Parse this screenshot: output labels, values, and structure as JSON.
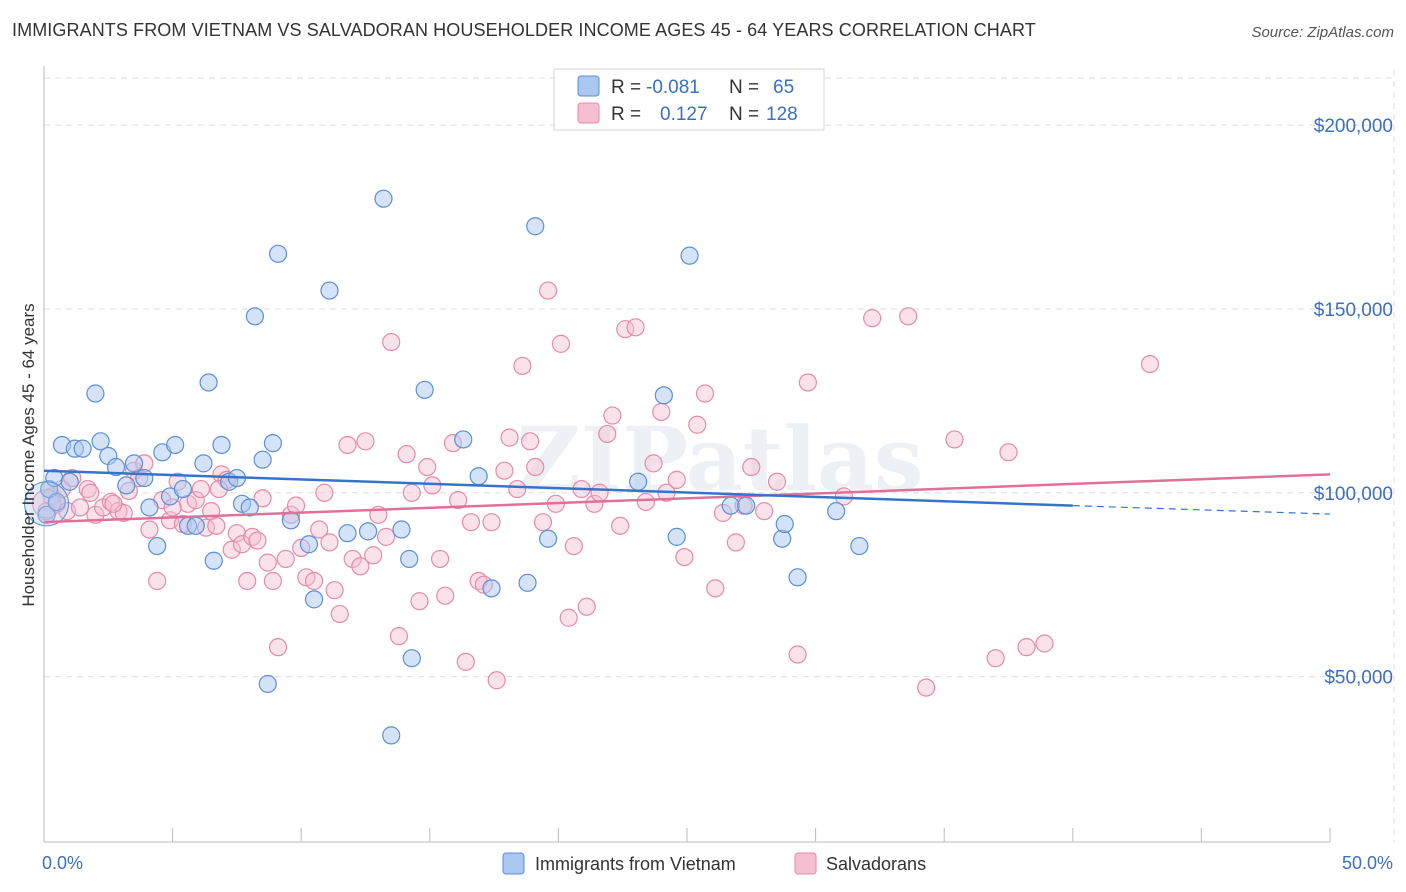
{
  "title": "IMMIGRANTS FROM VIETNAM VS SALVADORAN HOUSEHOLDER INCOME AGES 45 - 64 YEARS CORRELATION CHART",
  "source": "Source: ZipAtlas.com",
  "watermark": "ZIPatlas",
  "colors": {
    "blue_fill": "#a9c7ef",
    "blue_stroke": "#5b8fd6",
    "blue_line": "#3573cc",
    "pink_fill": "#f5bfd1",
    "pink_stroke": "#e68aaa",
    "pink_line": "#e0709a",
    "tick_text": "#3a6fc4",
    "grid": "#dddddd"
  },
  "legend": {
    "rows": [
      {
        "r_label": "R =",
        "r_value": "-0.081",
        "n_label": "N =",
        "n_value": "65"
      },
      {
        "r_label": "R =",
        "r_value": "0.127",
        "n_label": "N =",
        "n_value": "128"
      }
    ]
  },
  "bottom_legend": [
    "Immigrants from Vietnam",
    "Salvadorans"
  ],
  "chart_data": {
    "type": "scatter",
    "title": "IMMIGRANTS FROM VIETNAM VS SALVADORAN HOUSEHOLDER INCOME AGES 45 - 64 YEARS CORRELATION CHART",
    "xlabel": "",
    "ylabel": "Householder Income Ages 45 - 64 years",
    "xlim": [
      0,
      50
    ],
    "ylim": [
      5000,
      215000
    ],
    "x_tick_labels": [
      "0.0%",
      "50.0%"
    ],
    "y_ticks": [
      50000,
      100000,
      150000,
      200000
    ],
    "y_tick_labels": [
      "$50,000",
      "$100,000",
      "$150,000",
      "$200,000"
    ],
    "grid": true,
    "legend_position": "top-center",
    "series": [
      {
        "name": "Immigrants from Vietnam",
        "color": "#5b8fd6",
        "r": -0.081,
        "n": 65,
        "trend": {
          "x": [
            0,
            40
          ],
          "y": [
            106000,
            96500
          ],
          "dashed_to": [
            50,
            94200
          ]
        },
        "points": [
          [
            0.1,
            94000
          ],
          [
            0.2,
            101000
          ],
          [
            0.4,
            104000
          ],
          [
            0.5,
            97500
          ],
          [
            0.7,
            113000
          ],
          [
            1.0,
            103000
          ],
          [
            1.2,
            112000
          ],
          [
            1.5,
            112000
          ],
          [
            2.0,
            127000
          ],
          [
            2.2,
            114000
          ],
          [
            2.5,
            110000
          ],
          [
            2.8,
            107000
          ],
          [
            3.2,
            102000
          ],
          [
            3.5,
            108000
          ],
          [
            3.9,
            104000
          ],
          [
            4.1,
            96000
          ],
          [
            4.4,
            85500
          ],
          [
            4.6,
            111000
          ],
          [
            4.9,
            99000
          ],
          [
            5.1,
            113000
          ],
          [
            5.4,
            101000
          ],
          [
            5.6,
            91000
          ],
          [
            5.9,
            91000
          ],
          [
            6.2,
            108000
          ],
          [
            6.4,
            130000
          ],
          [
            6.6,
            81500
          ],
          [
            6.9,
            113000
          ],
          [
            7.2,
            103000
          ],
          [
            7.5,
            104000
          ],
          [
            7.7,
            97000
          ],
          [
            8.0,
            96000
          ],
          [
            8.2,
            148000
          ],
          [
            8.5,
            109000
          ],
          [
            8.7,
            48000
          ],
          [
            8.9,
            113500
          ],
          [
            9.1,
            165000
          ],
          [
            9.6,
            92500
          ],
          [
            10.3,
            86000
          ],
          [
            10.5,
            71000
          ],
          [
            11.1,
            155000
          ],
          [
            11.8,
            89000
          ],
          [
            12.6,
            89500
          ],
          [
            13.2,
            180000
          ],
          [
            13.5,
            34000
          ],
          [
            13.9,
            90000
          ],
          [
            14.2,
            82000
          ],
          [
            14.3,
            55000
          ],
          [
            14.8,
            128000
          ],
          [
            16.3,
            114500
          ],
          [
            16.9,
            104500
          ],
          [
            17.4,
            74000
          ],
          [
            18.8,
            75500
          ],
          [
            19.1,
            172500
          ],
          [
            19.6,
            87500
          ],
          [
            23.1,
            103000
          ],
          [
            24.1,
            126500
          ],
          [
            24.6,
            88000
          ],
          [
            25.1,
            164500
          ],
          [
            26.7,
            96500
          ],
          [
            27.3,
            96500
          ],
          [
            28.7,
            87500
          ],
          [
            28.8,
            91500
          ],
          [
            29.3,
            77000
          ],
          [
            30.8,
            95000
          ],
          [
            31.7,
            85500
          ]
        ]
      },
      {
        "name": "Salvadorans",
        "color": "#e68aaa",
        "r": 0.127,
        "n": 128,
        "trend": {
          "x": [
            0,
            50
          ],
          "y": [
            92000,
            105000
          ]
        },
        "points": [
          [
            0.1,
            95000
          ],
          [
            0.3,
            99000
          ],
          [
            0.5,
            97000
          ],
          [
            0.7,
            101000
          ],
          [
            0.9,
            95000
          ],
          [
            1.1,
            104000
          ],
          [
            1.4,
            96000
          ],
          [
            1.7,
            101000
          ],
          [
            2.0,
            94000
          ],
          [
            2.3,
            96000
          ],
          [
            2.6,
            97500
          ],
          [
            2.9,
            95000
          ],
          [
            3.1,
            94500
          ],
          [
            3.3,
            100500
          ],
          [
            3.5,
            106000
          ],
          [
            3.7,
            104000
          ],
          [
            3.9,
            108000
          ],
          [
            4.1,
            90000
          ],
          [
            4.4,
            76000
          ],
          [
            4.6,
            98000
          ],
          [
            4.9,
            92500
          ],
          [
            5.2,
            103000
          ],
          [
            5.4,
            91500
          ],
          [
            5.6,
            97000
          ],
          [
            5.9,
            98000
          ],
          [
            6.1,
            101000
          ],
          [
            6.3,
            90500
          ],
          [
            6.5,
            95000
          ],
          [
            6.7,
            91000
          ],
          [
            6.9,
            105000
          ],
          [
            7.1,
            103500
          ],
          [
            7.3,
            84500
          ],
          [
            7.5,
            89000
          ],
          [
            7.7,
            86000
          ],
          [
            7.9,
            76000
          ],
          [
            8.1,
            88000
          ],
          [
            8.3,
            87000
          ],
          [
            8.5,
            98500
          ],
          [
            8.7,
            81000
          ],
          [
            8.9,
            76000
          ],
          [
            9.1,
            58000
          ],
          [
            9.4,
            82000
          ],
          [
            9.6,
            94000
          ],
          [
            9.8,
            96500
          ],
          [
            10.0,
            85000
          ],
          [
            10.2,
            77000
          ],
          [
            10.5,
            76000
          ],
          [
            10.7,
            90000
          ],
          [
            10.9,
            100000
          ],
          [
            11.1,
            86500
          ],
          [
            11.3,
            73500
          ],
          [
            11.5,
            67000
          ],
          [
            11.8,
            113000
          ],
          [
            12.0,
            82000
          ],
          [
            12.3,
            80000
          ],
          [
            12.5,
            114000
          ],
          [
            12.8,
            83000
          ],
          [
            13.0,
            94000
          ],
          [
            13.3,
            88000
          ],
          [
            13.5,
            141000
          ],
          [
            13.8,
            61000
          ],
          [
            14.1,
            110500
          ],
          [
            14.3,
            100000
          ],
          [
            14.6,
            70500
          ],
          [
            14.9,
            107000
          ],
          [
            15.1,
            102000
          ],
          [
            15.4,
            82000
          ],
          [
            15.6,
            72000
          ],
          [
            15.9,
            113500
          ],
          [
            16.1,
            98000
          ],
          [
            16.4,
            54000
          ],
          [
            16.6,
            92000
          ],
          [
            16.9,
            76000
          ],
          [
            17.1,
            75000
          ],
          [
            17.4,
            92000
          ],
          [
            17.6,
            49000
          ],
          [
            17.9,
            106000
          ],
          [
            18.1,
            115000
          ],
          [
            18.4,
            101000
          ],
          [
            18.6,
            134500
          ],
          [
            18.9,
            114000
          ],
          [
            19.1,
            107000
          ],
          [
            19.4,
            92000
          ],
          [
            19.6,
            155000
          ],
          [
            19.9,
            97000
          ],
          [
            20.1,
            140500
          ],
          [
            20.4,
            66000
          ],
          [
            20.6,
            85500
          ],
          [
            20.9,
            101000
          ],
          [
            21.1,
            69000
          ],
          [
            21.4,
            97000
          ],
          [
            21.6,
            100000
          ],
          [
            21.9,
            116000
          ],
          [
            22.1,
            121000
          ],
          [
            22.4,
            91000
          ],
          [
            22.6,
            144500
          ],
          [
            23.0,
            145000
          ],
          [
            23.4,
            97500
          ],
          [
            23.7,
            108000
          ],
          [
            24.0,
            122000
          ],
          [
            24.2,
            100000
          ],
          [
            24.6,
            103500
          ],
          [
            24.9,
            82500
          ],
          [
            25.4,
            118500
          ],
          [
            25.7,
            127000
          ],
          [
            26.1,
            74000
          ],
          [
            26.4,
            94500
          ],
          [
            26.9,
            86500
          ],
          [
            27.2,
            96500
          ],
          [
            27.5,
            107000
          ],
          [
            28.0,
            95000
          ],
          [
            28.5,
            103000
          ],
          [
            29.3,
            56000
          ],
          [
            29.7,
            130000
          ],
          [
            31.1,
            99000
          ],
          [
            32.2,
            147500
          ],
          [
            33.6,
            148000
          ],
          [
            34.3,
            47000
          ],
          [
            35.4,
            114500
          ],
          [
            37.0,
            55000
          ],
          [
            37.5,
            111000
          ],
          [
            38.2,
            58000
          ],
          [
            38.9,
            59000
          ],
          [
            43.0,
            135000
          ],
          [
            1.8,
            100000
          ],
          [
            2.7,
            97000
          ],
          [
            5.0,
            96000
          ],
          [
            6.8,
            101000
          ]
        ]
      }
    ]
  }
}
